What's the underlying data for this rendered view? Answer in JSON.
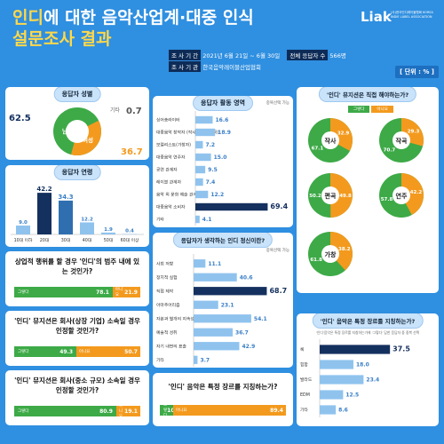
{
  "header": {
    "title_hl": "인디",
    "title_line1_rest": "에 대한 음악산업계·대중 인식",
    "title_line2": "설문조사 결과",
    "brand": "Liak",
    "brand_sub": "(사)한국인디레이블협회 KOREA INDIE LABEL ASSOCIATION",
    "period_label": "조 사 기 간",
    "period_value": "2021년 6월 21일 ~ 6월 30일",
    "respondents_label": "전체 응답자 수",
    "respondents_value": "566명",
    "org_label": "조 사 기 관",
    "org_value": "한국음악레이블산업협회",
    "unit": "[ 단위 : % ]"
  },
  "colors": {
    "green": "#3daa47",
    "orange": "#f39a1e",
    "navy": "#14305e",
    "blue": "#2f8fe0"
  },
  "gender": {
    "title": "응답자 성별",
    "items": [
      {
        "label": "남성",
        "value": 62.5
      },
      {
        "label": "여성",
        "value": 36.7
      },
      {
        "label": "기타",
        "value": 0.7
      }
    ]
  },
  "age": {
    "title": "응답자 연령",
    "categories": [
      "10대 이하",
      "20대",
      "30대",
      "40대",
      "50대",
      "60대 이상"
    ],
    "values": [
      9.0,
      42.2,
      34.3,
      12.2,
      1.9,
      0.4
    ]
  },
  "q_commercial": {
    "question": "상업적 행위를 할 경우 '인디'의 범주 내에 있는 것인가?",
    "yes_label": "그렇다",
    "yes": 78.1,
    "no_label": "아니요",
    "no": 21.9
  },
  "q_big_company": {
    "question": "'인디' 뮤지션은 회사(상장 기업) 소속일 경우 인정할 것인가?",
    "yes_label": "그렇다",
    "yes": 49.3,
    "no_label": "아니요",
    "no": 50.7
  },
  "q_small_company": {
    "question": "'인디' 뮤지션은 회사(중소 규모) 소속일 경우 인정할 것인가?",
    "yes_label": "그렇다",
    "yes": 80.9,
    "no_label": "아니요",
    "no": 19.1
  },
  "activity": {
    "title": "응답자 활동 영역",
    "note": "중복선택 가능",
    "categories": [
      "싱어송라이터",
      "대중음악 창작자 (작사, 작곡, 편곡)",
      "보컬리스트(가창자)",
      "대중음악 연주자",
      "공연 관계자",
      "레이블 관계자",
      "음악 외 문화 예술 관계자",
      "대중음악 소비자",
      "기타"
    ],
    "values": [
      16.6,
      18.9,
      7.2,
      15.0,
      9.5,
      7.4,
      12.2,
      69.4,
      4.1
    ]
  },
  "spirit": {
    "title": "응답자가 생각하는 인디 정신이란?",
    "note": "중복선택 가능",
    "categories": [
      "사회 저항",
      "정치적 실험",
      "직접 제작",
      "아마추어리즘",
      "자본과 별개의 지속성",
      "예술적 성취",
      "자기 내면의 표출",
      "기타"
    ],
    "values": [
      11.1,
      40.6,
      68.7,
      23.1,
      54.1,
      36.7,
      42.9,
      3.7
    ]
  },
  "q_genre_small": {
    "question": "'인디' 음악은 특정 장르를 지칭하는가?",
    "yes_label": "그렇다",
    "yes": 10.6,
    "no_label": "아니요",
    "no": 89.4
  },
  "direct": {
    "title": "'인디' 뮤지션은 직접 해야하는가?",
    "legend_yes": "그렇다",
    "legend_no": "아니요",
    "chart_data": {
      "type": "pie",
      "charts": [
        {
          "label": "작사",
          "yes": 67.1,
          "no": 32.9
        },
        {
          "label": "작곡",
          "yes": 70.7,
          "no": 29.3
        },
        {
          "label": "편곡",
          "yes": 50.2,
          "no": 49.8
        },
        {
          "label": "연주",
          "yes": 57.8,
          "no": 42.2
        },
        {
          "label": "가창",
          "yes": 61.8,
          "no": 38.2
        }
      ]
    }
  },
  "genre": {
    "title": "'인디' 음악은 특정 장르를 지칭하는가?",
    "note": "'인디'음악은 특정 장르를 지칭하는가에 '그렇다' 답한 응답자 중 중복 선택",
    "categories": [
      "록",
      "힙합",
      "발라드",
      "EDM",
      "기타"
    ],
    "values": [
      37.5,
      18.0,
      23.4,
      12.5,
      8.6
    ]
  }
}
